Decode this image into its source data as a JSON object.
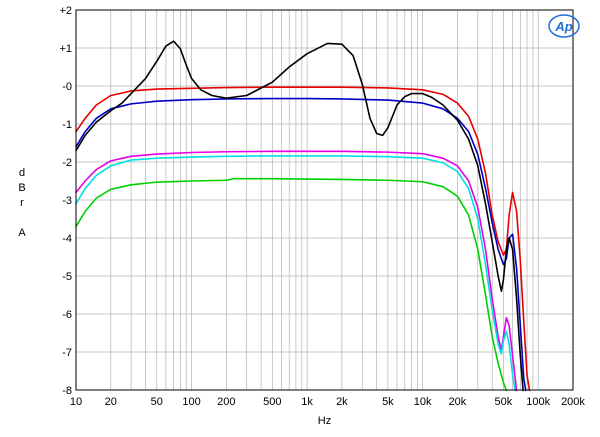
{
  "chart_data": {
    "type": "line",
    "x_scale": "log",
    "xlim": [
      10,
      200000
    ],
    "ylim": [
      -8,
      2
    ],
    "xlabel": "Hz",
    "ylabel": [
      "d",
      "B",
      "r",
      "",
      "A"
    ],
    "x_ticks": [
      {
        "v": 10,
        "label": "10"
      },
      {
        "v": 20,
        "label": "20"
      },
      {
        "v": 50,
        "label": "50"
      },
      {
        "v": 100,
        "label": "100"
      },
      {
        "v": 200,
        "label": "200"
      },
      {
        "v": 500,
        "label": "500"
      },
      {
        "v": 1000,
        "label": "1k"
      },
      {
        "v": 2000,
        "label": "2k"
      },
      {
        "v": 5000,
        "label": "5k"
      },
      {
        "v": 10000,
        "label": "10k"
      },
      {
        "v": 20000,
        "label": "20k"
      },
      {
        "v": 50000,
        "label": "50k"
      },
      {
        "v": 100000,
        "label": "100k"
      },
      {
        "v": 200000,
        "label": "200k"
      }
    ],
    "y_ticks": [
      {
        "v": 2,
        "label": "+2"
      },
      {
        "v": 1,
        "label": "+1"
      },
      {
        "v": 0,
        "label": "-0"
      },
      {
        "v": -1,
        "label": "-1"
      },
      {
        "v": -2,
        "label": "-2"
      },
      {
        "v": -3,
        "label": "-3"
      },
      {
        "v": -4,
        "label": "-4"
      },
      {
        "v": -5,
        "label": "-5"
      },
      {
        "v": -6,
        "label": "-6"
      },
      {
        "v": -7,
        "label": "-7"
      },
      {
        "v": -8,
        "label": "-8"
      }
    ],
    "grid": true,
    "logo": "Ap",
    "series": [
      {
        "color": "#e60000",
        "points": [
          [
            10,
            -1.2
          ],
          [
            12,
            -0.85
          ],
          [
            15,
            -0.5
          ],
          [
            20,
            -0.25
          ],
          [
            30,
            -0.13
          ],
          [
            50,
            -0.08
          ],
          [
            100,
            -0.06
          ],
          [
            200,
            -0.04
          ],
          [
            500,
            -0.03
          ],
          [
            1000,
            -0.03
          ],
          [
            2000,
            -0.03
          ],
          [
            5000,
            -0.05
          ],
          [
            10000,
            -0.1
          ],
          [
            15000,
            -0.22
          ],
          [
            20000,
            -0.45
          ],
          [
            25000,
            -0.8
          ],
          [
            30000,
            -1.4
          ],
          [
            35000,
            -2.3
          ],
          [
            40000,
            -3.4
          ],
          [
            45000,
            -4.1
          ],
          [
            50000,
            -4.45
          ],
          [
            53000,
            -4.3
          ],
          [
            56000,
            -3.4
          ],
          [
            60000,
            -2.8
          ],
          [
            65000,
            -3.3
          ],
          [
            70000,
            -4.6
          ],
          [
            75000,
            -6.2
          ],
          [
            80000,
            -7.6
          ],
          [
            84000,
            -8.2
          ]
        ]
      },
      {
        "color": "#0000c8",
        "points": [
          [
            10,
            -1.6
          ],
          [
            12,
            -1.2
          ],
          [
            15,
            -0.85
          ],
          [
            20,
            -0.6
          ],
          [
            30,
            -0.47
          ],
          [
            50,
            -0.4
          ],
          [
            100,
            -0.36
          ],
          [
            200,
            -0.34
          ],
          [
            500,
            -0.33
          ],
          [
            1000,
            -0.33
          ],
          [
            2000,
            -0.34
          ],
          [
            5000,
            -0.37
          ],
          [
            10000,
            -0.45
          ],
          [
            15000,
            -0.6
          ],
          [
            20000,
            -0.85
          ],
          [
            25000,
            -1.2
          ],
          [
            30000,
            -1.8
          ],
          [
            35000,
            -2.7
          ],
          [
            40000,
            -3.6
          ],
          [
            45000,
            -4.3
          ],
          [
            50000,
            -4.7
          ],
          [
            53000,
            -4.55
          ],
          [
            56000,
            -4.0
          ],
          [
            60000,
            -3.9
          ],
          [
            65000,
            -4.8
          ],
          [
            70000,
            -6.3
          ],
          [
            75000,
            -7.7
          ],
          [
            78000,
            -8.2
          ]
        ]
      },
      {
        "color": "#000000",
        "points": [
          [
            10,
            -1.7
          ],
          [
            12,
            -1.3
          ],
          [
            15,
            -0.95
          ],
          [
            20,
            -0.65
          ],
          [
            25,
            -0.45
          ],
          [
            30,
            -0.2
          ],
          [
            40,
            0.2
          ],
          [
            50,
            0.65
          ],
          [
            60,
            1.05
          ],
          [
            70,
            1.18
          ],
          [
            80,
            0.98
          ],
          [
            90,
            0.55
          ],
          [
            100,
            0.2
          ],
          [
            120,
            -0.1
          ],
          [
            150,
            -0.25
          ],
          [
            200,
            -0.32
          ],
          [
            300,
            -0.25
          ],
          [
            500,
            0.1
          ],
          [
            700,
            0.5
          ],
          [
            1000,
            0.85
          ],
          [
            1500,
            1.12
          ],
          [
            2000,
            1.1
          ],
          [
            2500,
            0.8
          ],
          [
            3000,
            0.05
          ],
          [
            3500,
            -0.85
          ],
          [
            4000,
            -1.25
          ],
          [
            4500,
            -1.3
          ],
          [
            5000,
            -1.1
          ],
          [
            6000,
            -0.5
          ],
          [
            7000,
            -0.28
          ],
          [
            8000,
            -0.2
          ],
          [
            10000,
            -0.2
          ],
          [
            12000,
            -0.3
          ],
          [
            15000,
            -0.5
          ],
          [
            20000,
            -0.9
          ],
          [
            25000,
            -1.4
          ],
          [
            30000,
            -2.1
          ],
          [
            35000,
            -3.1
          ],
          [
            40000,
            -4.1
          ],
          [
            45000,
            -5.0
          ],
          [
            48000,
            -5.4
          ],
          [
            50000,
            -5.1
          ],
          [
            53000,
            -4.3
          ],
          [
            56000,
            -4.0
          ],
          [
            60000,
            -4.3
          ],
          [
            65000,
            -5.6
          ],
          [
            70000,
            -7.1
          ],
          [
            74000,
            -8.2
          ]
        ]
      },
      {
        "color": "#e600e6",
        "points": [
          [
            10,
            -2.8
          ],
          [
            12,
            -2.5
          ],
          [
            15,
            -2.2
          ],
          [
            20,
            -1.97
          ],
          [
            30,
            -1.85
          ],
          [
            50,
            -1.79
          ],
          [
            100,
            -1.75
          ],
          [
            200,
            -1.73
          ],
          [
            500,
            -1.72
          ],
          [
            1000,
            -1.72
          ],
          [
            2000,
            -1.72
          ],
          [
            5000,
            -1.74
          ],
          [
            10000,
            -1.78
          ],
          [
            15000,
            -1.9
          ],
          [
            20000,
            -2.1
          ],
          [
            25000,
            -2.5
          ],
          [
            30000,
            -3.2
          ],
          [
            35000,
            -4.3
          ],
          [
            40000,
            -5.6
          ],
          [
            45000,
            -6.6
          ],
          [
            48000,
            -6.95
          ],
          [
            50000,
            -6.6
          ],
          [
            53000,
            -6.1
          ],
          [
            56000,
            -6.3
          ],
          [
            60000,
            -7.1
          ],
          [
            65000,
            -8.2
          ]
        ]
      },
      {
        "color": "#00e0e0",
        "points": [
          [
            10,
            -3.1
          ],
          [
            12,
            -2.7
          ],
          [
            15,
            -2.35
          ],
          [
            20,
            -2.1
          ],
          [
            30,
            -1.95
          ],
          [
            50,
            -1.9
          ],
          [
            100,
            -1.87
          ],
          [
            200,
            -1.85
          ],
          [
            500,
            -1.84
          ],
          [
            1000,
            -1.84
          ],
          [
            2000,
            -1.84
          ],
          [
            5000,
            -1.86
          ],
          [
            10000,
            -1.9
          ],
          [
            15000,
            -2.02
          ],
          [
            20000,
            -2.25
          ],
          [
            25000,
            -2.7
          ],
          [
            30000,
            -3.5
          ],
          [
            35000,
            -4.7
          ],
          [
            40000,
            -5.9
          ],
          [
            45000,
            -6.8
          ],
          [
            48000,
            -7.05
          ],
          [
            50000,
            -6.7
          ],
          [
            53000,
            -6.45
          ],
          [
            56000,
            -6.8
          ],
          [
            60000,
            -7.6
          ],
          [
            63000,
            -8.2
          ]
        ]
      },
      {
        "color": "#00d000",
        "points": [
          [
            10,
            -3.7
          ],
          [
            12,
            -3.3
          ],
          [
            15,
            -2.95
          ],
          [
            20,
            -2.72
          ],
          [
            30,
            -2.6
          ],
          [
            50,
            -2.53
          ],
          [
            100,
            -2.5
          ],
          [
            200,
            -2.48
          ],
          [
            230,
            -2.44
          ],
          [
            500,
            -2.44
          ],
          [
            1000,
            -2.45
          ],
          [
            2000,
            -2.46
          ],
          [
            5000,
            -2.48
          ],
          [
            10000,
            -2.52
          ],
          [
            15000,
            -2.65
          ],
          [
            20000,
            -2.9
          ],
          [
            25000,
            -3.4
          ],
          [
            30000,
            -4.3
          ],
          [
            35000,
            -5.5
          ],
          [
            40000,
            -6.6
          ],
          [
            45000,
            -7.3
          ],
          [
            50000,
            -7.8
          ],
          [
            53000,
            -8.2
          ]
        ]
      }
    ]
  }
}
